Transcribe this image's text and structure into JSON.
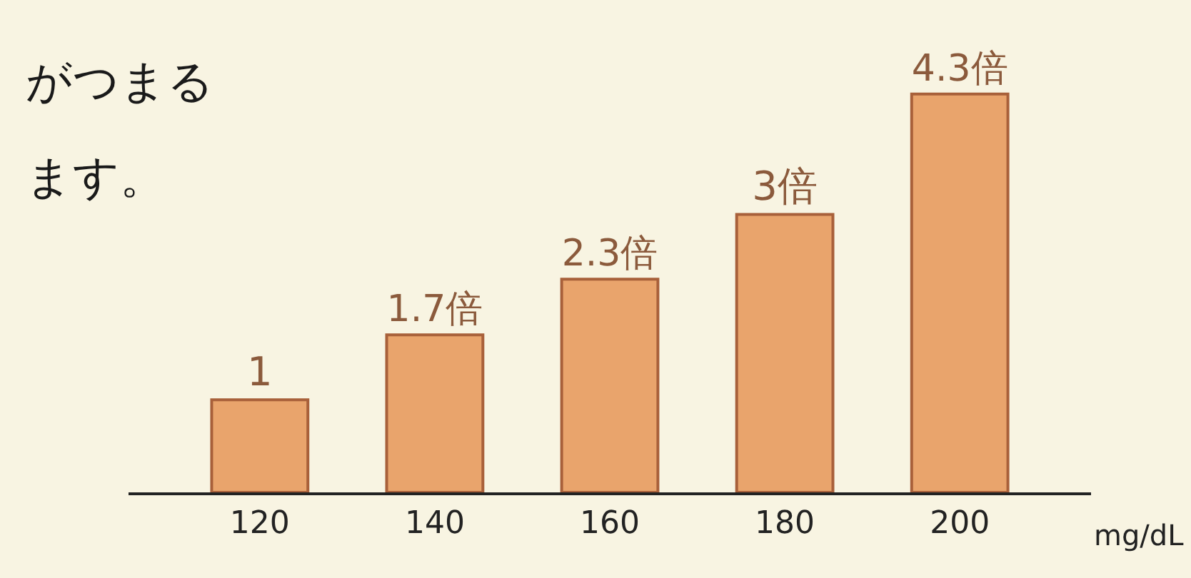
{
  "chart_data": {
    "type": "bar",
    "categories": [
      "120",
      "140",
      "160",
      "180",
      "200"
    ],
    "values": [
      1,
      1.7,
      2.3,
      3,
      4.3
    ],
    "value_labels": [
      "1",
      "1.7倍",
      "2.3倍",
      "3倍",
      "4.3倍"
    ],
    "color": "#e9a46c",
    "xlabel": "mg/dL",
    "annotations": [
      "がつまる",
      "ます。"
    ]
  }
}
